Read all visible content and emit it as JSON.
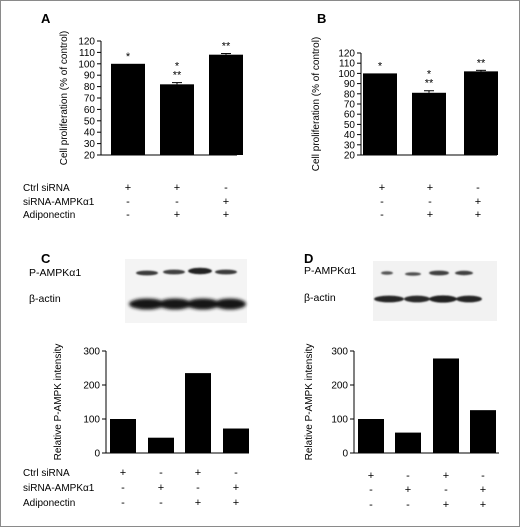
{
  "panels": [
    {
      "label": "A"
    },
    {
      "label": "B"
    },
    {
      "label": "C",
      "blot_labels": [
        "P-AMPKα1",
        "β-actin"
      ]
    },
    {
      "label": "D",
      "blot_labels": [
        "P-AMPKα1",
        "β-actin"
      ]
    }
  ],
  "chart_data": [
    {
      "panel": "A",
      "type": "bar",
      "ylabel": "Cell proliferation (% of control)",
      "ylim": [
        20,
        120
      ],
      "yticks": [
        20,
        30,
        40,
        50,
        60,
        70,
        80,
        90,
        100,
        110,
        120
      ],
      "values": [
        100,
        82,
        108
      ],
      "errors": [
        0,
        1.5,
        1
      ],
      "annotations": [
        [
          "*"
        ],
        [
          "*",
          "**"
        ],
        [
          "**"
        ]
      ],
      "conditions": [
        {
          "label": "Ctrl siRNA",
          "marks": [
            "+",
            "+",
            "-"
          ]
        },
        {
          "label": "siRNA-AMPKα1",
          "marks": [
            "-",
            "-",
            "+"
          ]
        },
        {
          "label": "Adiponectin",
          "marks": [
            "-",
            "+",
            "+"
          ]
        }
      ]
    },
    {
      "panel": "B",
      "type": "bar",
      "ylabel": "Cell proliferation (% of control)",
      "ylim": [
        20,
        120
      ],
      "yticks": [
        20,
        30,
        40,
        50,
        60,
        70,
        80,
        90,
        100,
        110,
        120
      ],
      "values": [
        100,
        81,
        102
      ],
      "errors": [
        0,
        2,
        1
      ],
      "annotations": [
        [
          "*"
        ],
        [
          "*",
          "**"
        ],
        [
          "**"
        ]
      ],
      "conditions": [
        {
          "label": "",
          "marks": [
            "+",
            "+",
            "-"
          ]
        },
        {
          "label": "",
          "marks": [
            "-",
            "-",
            "+"
          ]
        },
        {
          "label": "",
          "marks": [
            "-",
            "+",
            "+"
          ]
        }
      ]
    },
    {
      "panel": "C",
      "type": "bar",
      "ylabel": "Relative P-AMPK intensity",
      "ylim": [
        0,
        300
      ],
      "yticks": [
        0,
        100,
        200,
        300
      ],
      "values": [
        100,
        45,
        235,
        72
      ],
      "errors": [
        0,
        0,
        0,
        0
      ],
      "annotations": [
        [],
        [],
        [],
        []
      ],
      "conditions": [
        {
          "label": "Ctrl siRNA",
          "marks": [
            "+",
            "-",
            "+",
            "-"
          ]
        },
        {
          "label": "siRNA-AMPKα1",
          "marks": [
            "-",
            "+",
            "-",
            "+"
          ]
        },
        {
          "label": "Adiponectin",
          "marks": [
            "-",
            "-",
            "+",
            "+"
          ]
        }
      ]
    },
    {
      "panel": "D",
      "type": "bar",
      "ylabel": "Relative P-AMPK intensity",
      "ylim": [
        0,
        300
      ],
      "yticks": [
        0,
        100,
        200,
        300
      ],
      "values": [
        100,
        60,
        278,
        126
      ],
      "errors": [
        0,
        0,
        0,
        0
      ],
      "annotations": [
        [],
        [],
        [],
        []
      ],
      "conditions": [
        {
          "label": "",
          "marks": [
            "+",
            "-",
            "+",
            "-"
          ]
        },
        {
          "label": "",
          "marks": [
            "-",
            "+",
            "-",
            "+"
          ]
        },
        {
          "label": "",
          "marks": [
            "-",
            "-",
            "+",
            "+"
          ]
        }
      ]
    }
  ]
}
